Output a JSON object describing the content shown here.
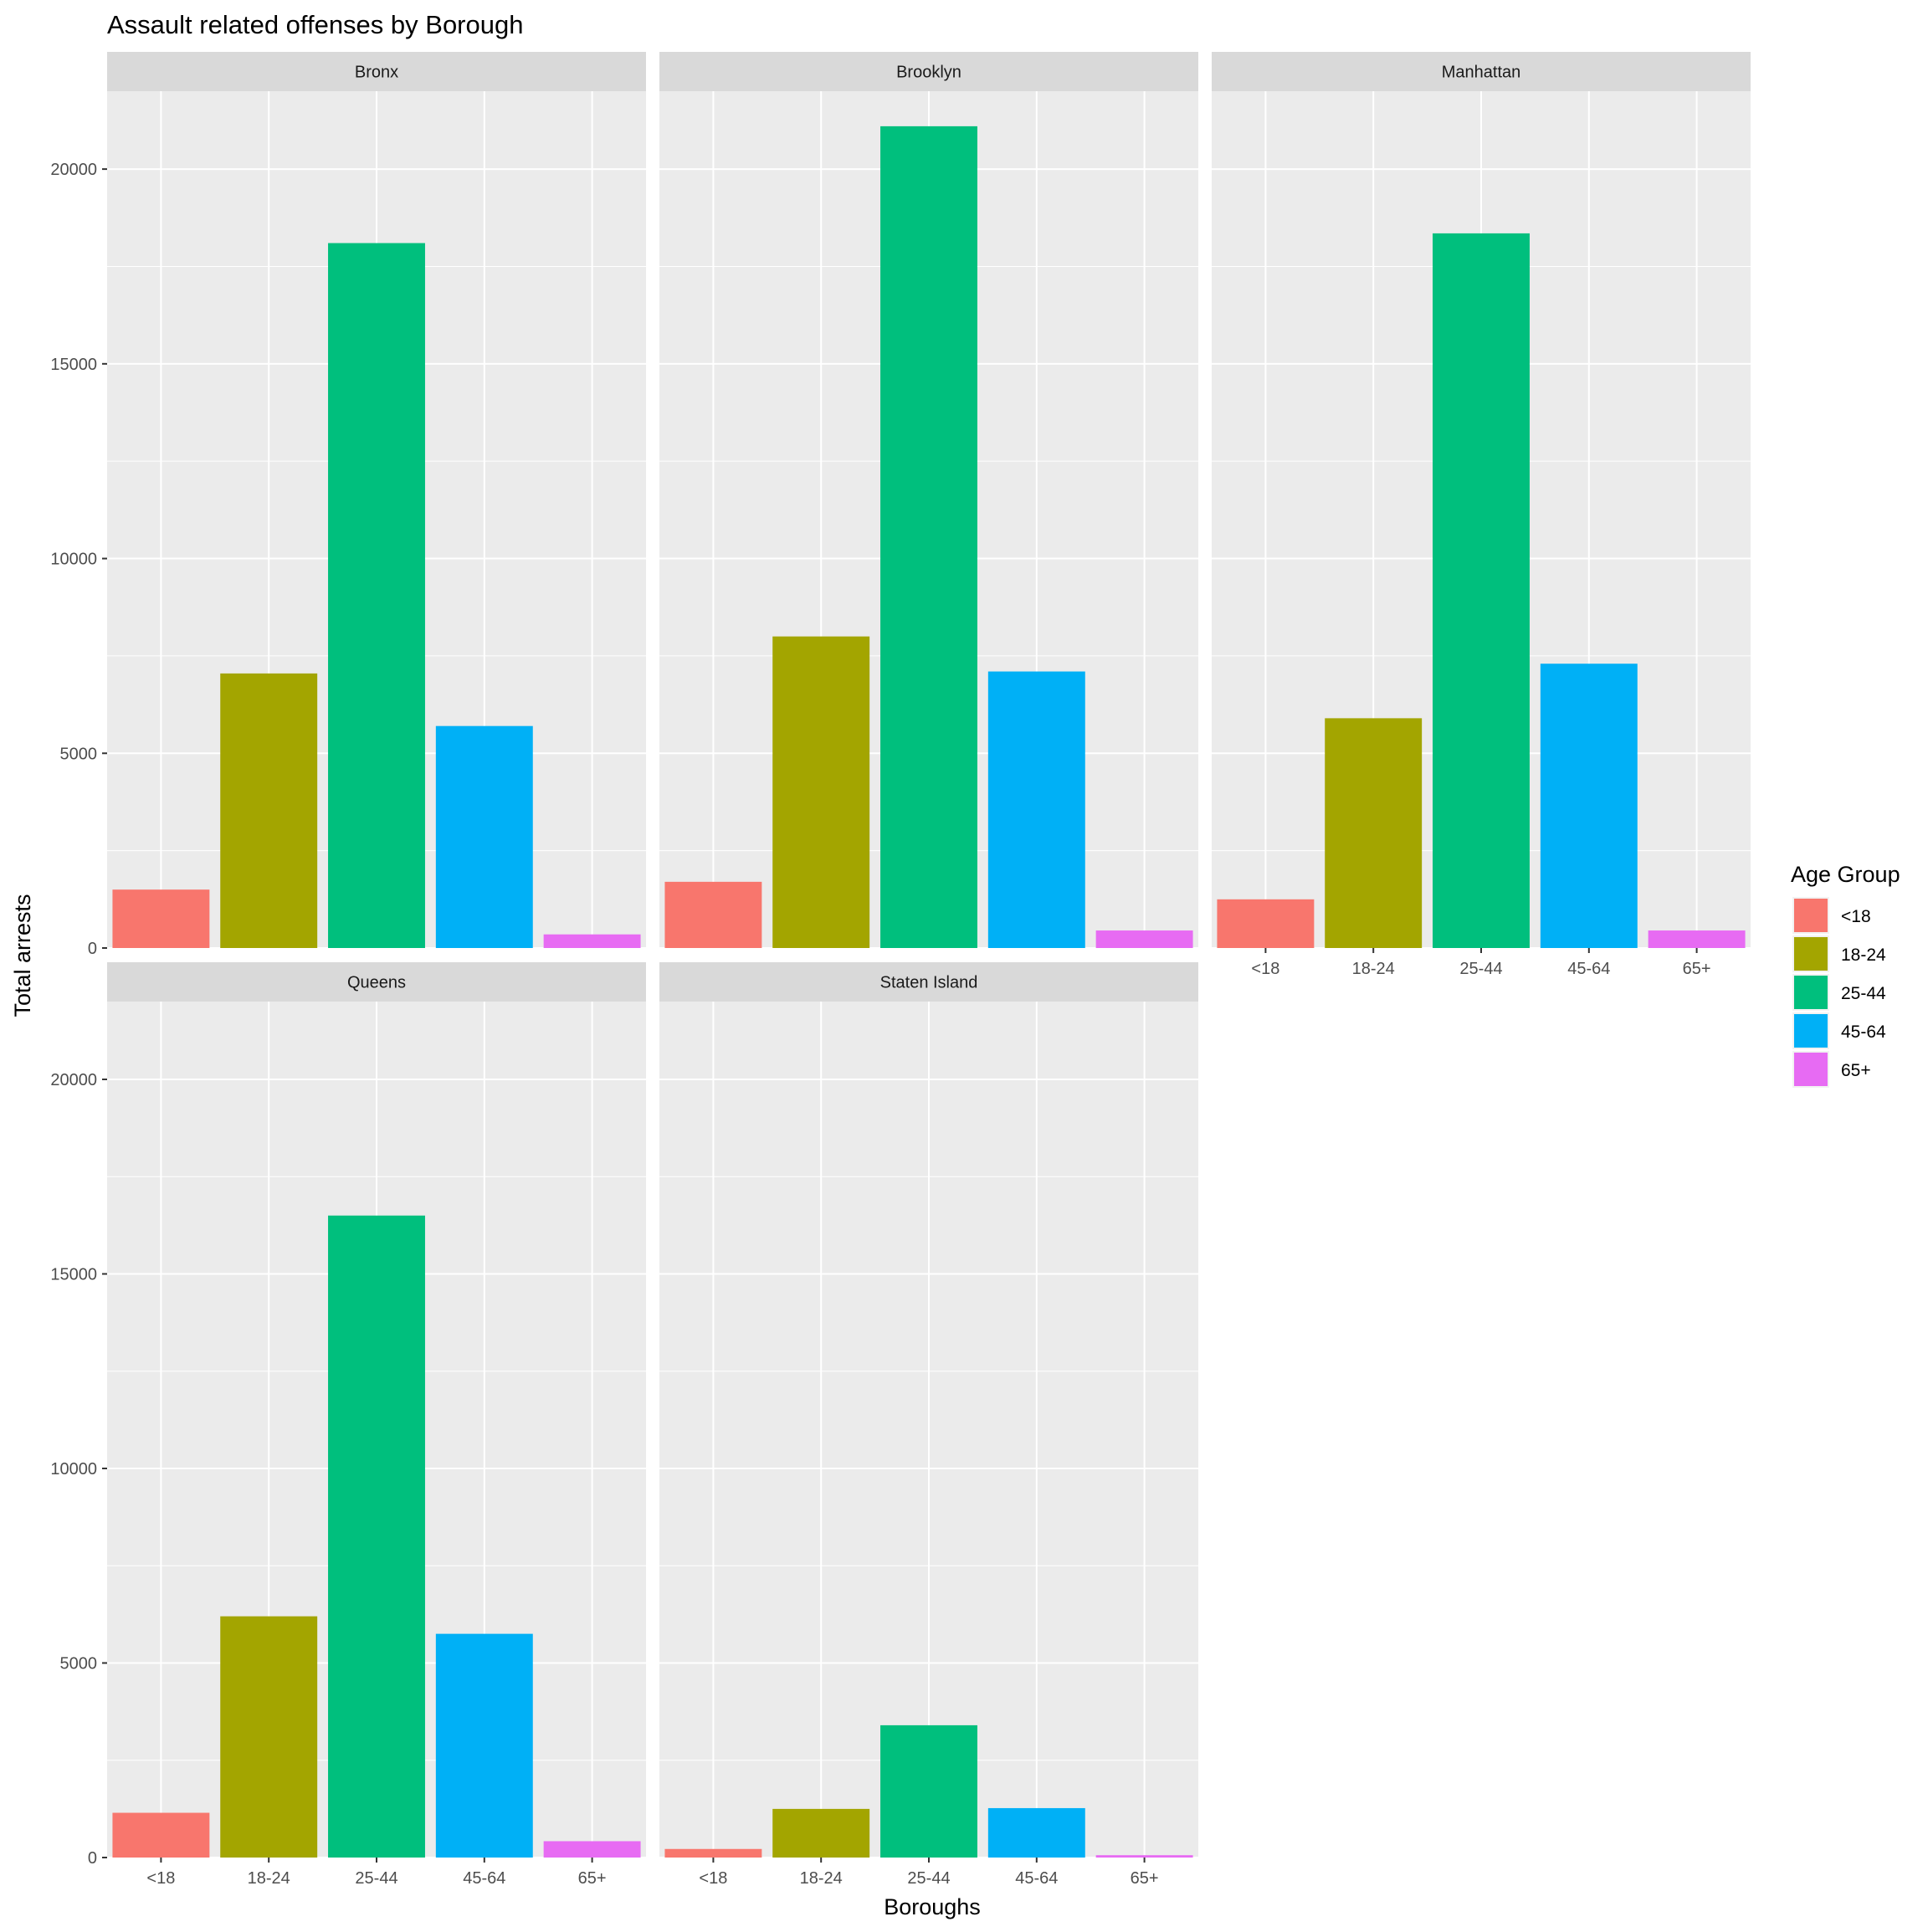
{
  "chart_data": {
    "type": "bar",
    "title": "Assault related offenses by Borough",
    "xlabel": "Boroughs",
    "ylabel": "Total arrests",
    "ylim": [
      0,
      22000
    ],
    "y_ticks": [
      "0",
      "5000",
      "10000",
      "15000",
      "20000"
    ],
    "categories": [
      "<18",
      "18-24",
      "25-44",
      "45-64",
      "65+"
    ],
    "grid": true,
    "legend": {
      "title": "Age Group",
      "position": "right",
      "entries": [
        {
          "label": "<18",
          "color": "#F8766D"
        },
        {
          "label": "18-24",
          "color": "#A3A500"
        },
        {
          "label": "25-44",
          "color": "#00BF7D"
        },
        {
          "label": "45-64",
          "color": "#00B0F6"
        },
        {
          "label": "65+",
          "color": "#E76BF3"
        }
      ]
    },
    "facets": [
      {
        "name": "Bronx",
        "values": [
          1500,
          7050,
          18100,
          5700,
          350
        ]
      },
      {
        "name": "Brooklyn",
        "values": [
          1700,
          8000,
          21100,
          7100,
          450
        ]
      },
      {
        "name": "Manhattan",
        "values": [
          1250,
          5900,
          18350,
          7300,
          450
        ]
      },
      {
        "name": "Queens",
        "values": [
          1150,
          6200,
          16500,
          5750,
          420
        ]
      },
      {
        "name": "Staten Island",
        "values": [
          220,
          1250,
          3400,
          1270,
          60
        ]
      }
    ]
  },
  "colors": {
    "panel_background": "#EBEBEB",
    "grid_major": "#FFFFFF",
    "strip_background": "#D9D9D9"
  }
}
